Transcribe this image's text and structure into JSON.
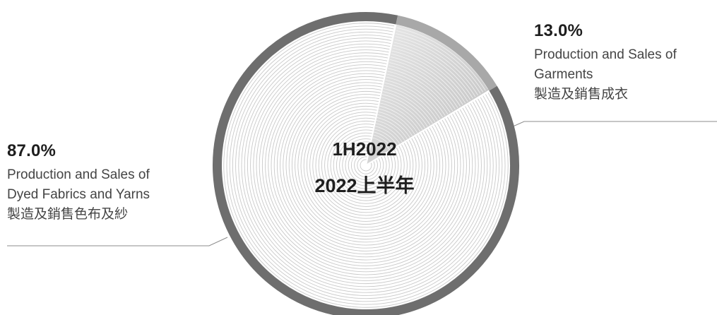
{
  "chart_data": {
    "type": "pie",
    "center_title": "1H2022",
    "center_subtitle": "2022上半年",
    "slices": [
      {
        "value": 87.0,
        "value_label": "87.0%",
        "name_lines": [
          "Production and Sales of",
          "Dyed Fabrics and Yarns",
          "製造及銷售色布及紗"
        ]
      },
      {
        "value": 13.0,
        "value_label": "13.0%",
        "name_lines": [
          "Production and Sales of",
          "Garments",
          "製造及銷售成衣"
        ]
      }
    ],
    "colors": {
      "large_slice_ring": "#6e6e6e",
      "large_slice_fill": "#ffffff",
      "small_slice_ring": "#a8a8a8",
      "small_slice_fill": "#d2d2d2",
      "leader_line": "#8c8c8c"
    }
  }
}
